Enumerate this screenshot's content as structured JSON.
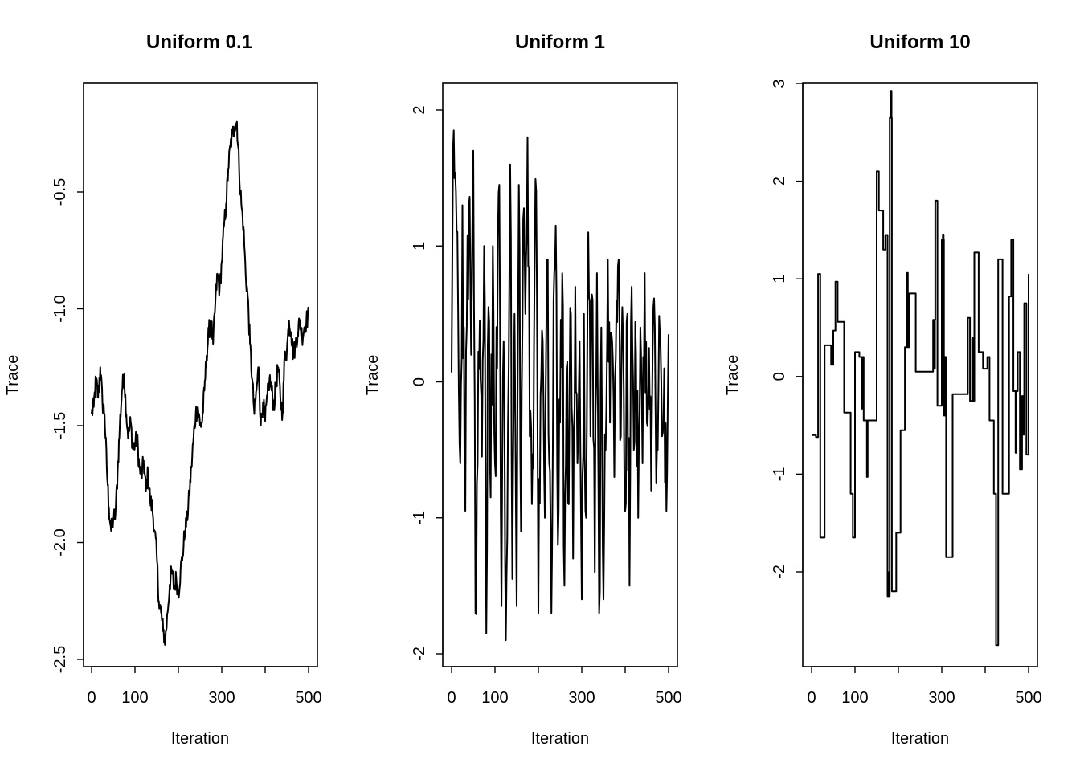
{
  "chart_data": [
    {
      "type": "line",
      "title": "Uniform 0.1",
      "xlabel": "Iteration",
      "ylabel": "Trace",
      "xlim": [
        0,
        500
      ],
      "ylim": [
        -2.5,
        -0.15
      ],
      "xticks": [
        0,
        100,
        300,
        500
      ],
      "xtick_marks": [
        0,
        100,
        200,
        300,
        400,
        500
      ],
      "yticks": [
        -2.5,
        -2.0,
        -1.5,
        -1.0,
        -0.5
      ],
      "ytick_labels": [
        "-2.5",
        "-2.0",
        "-1.5",
        "-1.0",
        "-0.5"
      ],
      "series": [
        {
          "style": "wander",
          "x": [
            0,
            5,
            10,
            15,
            20,
            25,
            30,
            35,
            40,
            45,
            50,
            55,
            60,
            65,
            70,
            75,
            80,
            85,
            90,
            95,
            100,
            105,
            110,
            115,
            120,
            125,
            130,
            135,
            140,
            145,
            150,
            155,
            160,
            165,
            170,
            175,
            180,
            185,
            190,
            195,
            200,
            205,
            210,
            215,
            220,
            225,
            230,
            235,
            240,
            245,
            250,
            255,
            260,
            265,
            270,
            275,
            280,
            285,
            290,
            295,
            300,
            305,
            310,
            315,
            320,
            325,
            330,
            335,
            340,
            345,
            350,
            355,
            360,
            365,
            370,
            375,
            380,
            385,
            390,
            395,
            400,
            405,
            410,
            415,
            420,
            425,
            430,
            435,
            440,
            445,
            450,
            455,
            460,
            465,
            470,
            475,
            480,
            485,
            490,
            495,
            500
          ],
          "values": [
            -1.45,
            -1.42,
            -1.3,
            -1.38,
            -1.25,
            -1.4,
            -1.45,
            -1.68,
            -1.85,
            -1.95,
            -1.9,
            -1.88,
            -1.7,
            -1.5,
            -1.35,
            -1.28,
            -1.45,
            -1.55,
            -1.48,
            -1.6,
            -1.58,
            -1.55,
            -1.68,
            -1.72,
            -1.65,
            -1.78,
            -1.7,
            -1.82,
            -1.85,
            -1.95,
            -2.05,
            -2.25,
            -2.3,
            -2.38,
            -2.42,
            -2.3,
            -2.18,
            -2.12,
            -2.2,
            -2.15,
            -2.22,
            -2.12,
            -2.05,
            -1.95,
            -1.9,
            -1.8,
            -1.68,
            -1.55,
            -1.45,
            -1.42,
            -1.5,
            -1.48,
            -1.35,
            -1.2,
            -1.1,
            -1.05,
            -1.15,
            -0.98,
            -0.85,
            -0.92,
            -0.8,
            -0.65,
            -0.55,
            -0.4,
            -0.3,
            -0.25,
            -0.22,
            -0.2,
            -0.4,
            -0.55,
            -0.65,
            -0.85,
            -0.95,
            -1.15,
            -1.3,
            -1.45,
            -1.35,
            -1.25,
            -1.5,
            -1.4,
            -1.48,
            -1.38,
            -1.3,
            -1.35,
            -1.42,
            -1.32,
            -1.25,
            -1.38,
            -1.45,
            -1.2,
            -1.18,
            -1.05,
            -1.1,
            -1.2,
            -1.15,
            -1.1,
            -1.05,
            -1.12,
            -1.08,
            -1.05,
            -1.03
          ]
        }
      ]
    },
    {
      "type": "line",
      "title": "Uniform 1",
      "xlabel": "Iteration",
      "ylabel": "Trace",
      "xlim": [
        0,
        500
      ],
      "ylim": [
        -2.0,
        2.2
      ],
      "xticks": [
        0,
        100,
        300,
        500
      ],
      "xtick_marks": [
        0,
        100,
        200,
        300,
        400,
        500
      ],
      "yticks": [
        -2,
        -1,
        0,
        1,
        2
      ],
      "ytick_labels": [
        "-2",
        "-1",
        "0",
        "1",
        "2"
      ],
      "series": [
        {
          "style": "noise",
          "x": [
            0,
            5,
            10,
            15,
            20,
            25,
            30,
            35,
            40,
            45,
            50,
            55,
            60,
            65,
            70,
            75,
            80,
            85,
            90,
            95,
            100,
            105,
            110,
            115,
            120,
            125,
            130,
            135,
            140,
            145,
            150,
            155,
            160,
            165,
            170,
            175,
            180,
            185,
            190,
            195,
            200,
            205,
            210,
            215,
            220,
            225,
            230,
            235,
            240,
            245,
            250,
            255,
            260,
            265,
            270,
            275,
            280,
            285,
            290,
            295,
            300,
            305,
            310,
            315,
            320,
            325,
            330,
            335,
            340,
            345,
            350,
            355,
            360,
            365,
            370,
            375,
            380,
            385,
            390,
            395,
            400,
            405,
            410,
            415,
            420,
            425,
            430,
            435,
            440,
            445,
            450,
            455,
            460,
            465,
            470,
            475,
            480,
            485,
            490,
            495,
            500
          ],
          "values": [
            0.07,
            1.85,
            1.4,
            0.55,
            -0.6,
            1.3,
            -0.8,
            0.4,
            1.3,
            0.2,
            1.7,
            -1.7,
            -0.6,
            0.45,
            -0.55,
            1.0,
            -1.85,
            0.55,
            -0.85,
            1.0,
            -0.6,
            0.1,
            1.45,
            -1.65,
            0.3,
            -1.9,
            -0.3,
            1.6,
            -1.45,
            0.5,
            -1.65,
            1.45,
            -1.1,
            1.2,
            0.5,
            1.8,
            -0.4,
            -0.9,
            0.3,
            1.4,
            -1.7,
            -0.1,
            0.3,
            -1.0,
            0.9,
            -0.6,
            -1.7,
            0.6,
            1.15,
            -1.2,
            -0.3,
            0.8,
            -1.5,
            0.1,
            -0.9,
            0.5,
            -1.3,
            0.7,
            -0.6,
            0.3,
            -1.6,
            0.5,
            -1.0,
            1.1,
            -0.4,
            0.6,
            -1.4,
            0.8,
            -1.7,
            0.4,
            -1.6,
            -0.5,
            0.9,
            -0.3,
            0.3,
            -0.7,
            0.6,
            0.9,
            -0.4,
            0.35,
            -0.95,
            0.5,
            -1.5,
            0.7,
            -0.5,
            0.2,
            -1.0,
            0.4,
            -0.6,
            0.8,
            -0.3,
            0.25,
            -0.8,
            0.55,
            -0.2,
            -0.5,
            0.35,
            -0.4,
            0.1,
            -0.95,
            0.35
          ]
        }
      ]
    },
    {
      "type": "line",
      "title": "Uniform 10",
      "xlabel": "Iteration",
      "ylabel": "Trace",
      "xlim": [
        0,
        500
      ],
      "ylim": [
        -2.9,
        3.0
      ],
      "xticks": [
        0,
        100,
        300,
        500
      ],
      "xtick_marks": [
        0,
        100,
        200,
        300,
        400,
        500
      ],
      "yticks": [
        -2,
        -1,
        0,
        1,
        2,
        3
      ],
      "ytick_labels": [
        "-2",
        "-1",
        "0",
        "1",
        "2",
        "3"
      ],
      "series": [
        {
          "style": "steps",
          "x": [
            0,
            10,
            15,
            20,
            30,
            45,
            50,
            55,
            60,
            75,
            90,
            95,
            100,
            110,
            120,
            135,
            150,
            155,
            165,
            170,
            175,
            180,
            185,
            195,
            205,
            215,
            225,
            240,
            280,
            285,
            290,
            300,
            305,
            310,
            325,
            360,
            365,
            375,
            385,
            395,
            405,
            410,
            420,
            425,
            430,
            440,
            455,
            460,
            465,
            475,
            480,
            485,
            490,
            495,
            500
          ],
          "values": [
            -0.6,
            -0.62,
            1.05,
            -1.65,
            0.32,
            0.12,
            0.47,
            0.97,
            0.56,
            -0.37,
            -1.2,
            -1.65,
            0.25,
            0.2,
            -0.45,
            -0.45,
            2.1,
            1.7,
            1.3,
            1.45,
            -2.25,
            2.65,
            -2.2,
            -1.6,
            -0.55,
            0.3,
            0.85,
            0.05,
            0.58,
            1.8,
            -0.3,
            1.4,
            -0.4,
            -1.85,
            -0.18,
            0.6,
            -0.25,
            1.27,
            0.25,
            0.08,
            0.2,
            -0.45,
            -1.2,
            -2.75,
            1.2,
            -1.2,
            0.82,
            1.4,
            -0.15,
            0.25,
            -0.95,
            -0.2,
            0.75,
            -0.8,
            1.05
          ]
        }
      ]
    }
  ]
}
